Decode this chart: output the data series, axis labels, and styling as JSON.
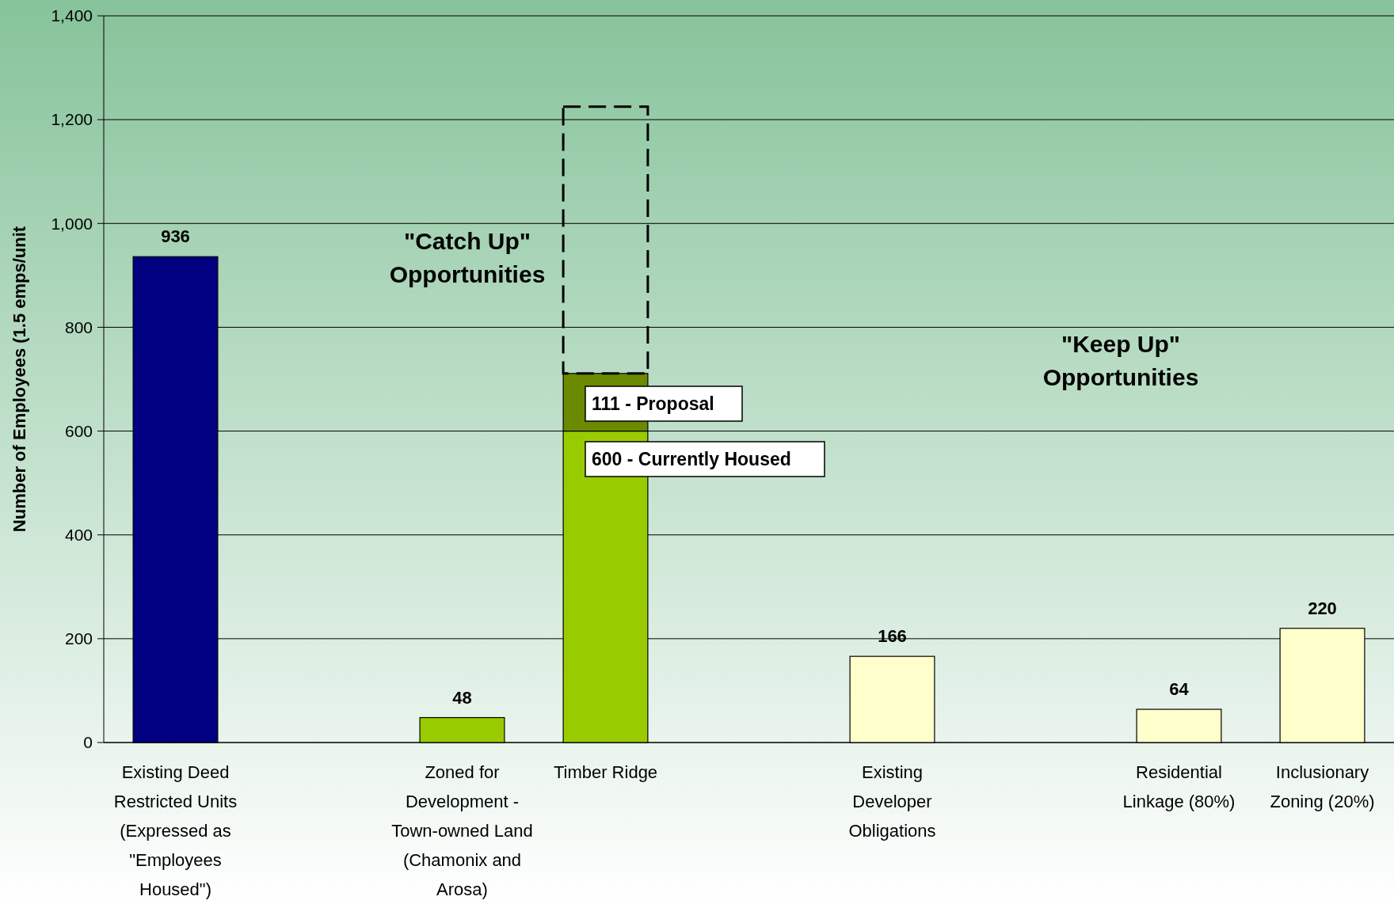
{
  "chart_data": {
    "type": "bar",
    "stacked": true,
    "ylabel": "Number of Employees (1.5 emps/unit",
    "categories": [
      "Existing Deed Restricted Units (Expressed as \"Employees Housed\")",
      null,
      "Zoned for Development - Town-owned Land (Chamonix and Arosa)",
      "Timber Ridge",
      null,
      "Existing Developer Obligations",
      null,
      "Residential Linkage (80%)",
      "Inclusionary Zoning (20%)"
    ],
    "series": [
      {
        "values": [
          936,
          null,
          48,
          600,
          null,
          166,
          null,
          64,
          220
        ],
        "colors": [
          "#000080",
          null,
          "#99cc00",
          "#99cc00",
          null,
          "#ffffcc",
          null,
          "#ffffcc",
          "#ffffcc"
        ],
        "value_labels": [
          "936",
          null,
          "48",
          null,
          null,
          "166",
          null,
          "64",
          "220"
        ]
      },
      {
        "values": [
          null,
          null,
          null,
          111,
          null,
          null,
          null,
          null,
          null
        ],
        "color": "#6b8a00"
      },
      {
        "values": [
          null,
          null,
          null,
          514,
          null,
          null,
          null,
          null,
          null
        ],
        "color": "#000000",
        "line_style": "dashed"
      }
    ],
    "ylim": [
      0,
      1400
    ],
    "yticks": [
      {
        "value": 0,
        "label": "0"
      },
      {
        "value": 200,
        "label": "200"
      },
      {
        "value": 400,
        "label": "400"
      },
      {
        "value": 600,
        "label": "600"
      },
      {
        "value": 800,
        "label": "800"
      },
      {
        "value": 1000,
        "label": "1,000"
      },
      {
        "value": 1200,
        "label": "1,200"
      },
      {
        "value": 1400,
        "label": "1,400"
      }
    ],
    "grid": "y",
    "annotations": [
      "111 - Proposal",
      "600 - Currently Housed",
      "\"Catch Up\" Opportunities",
      "\"Keep Up\" Opportunities"
    ]
  }
}
